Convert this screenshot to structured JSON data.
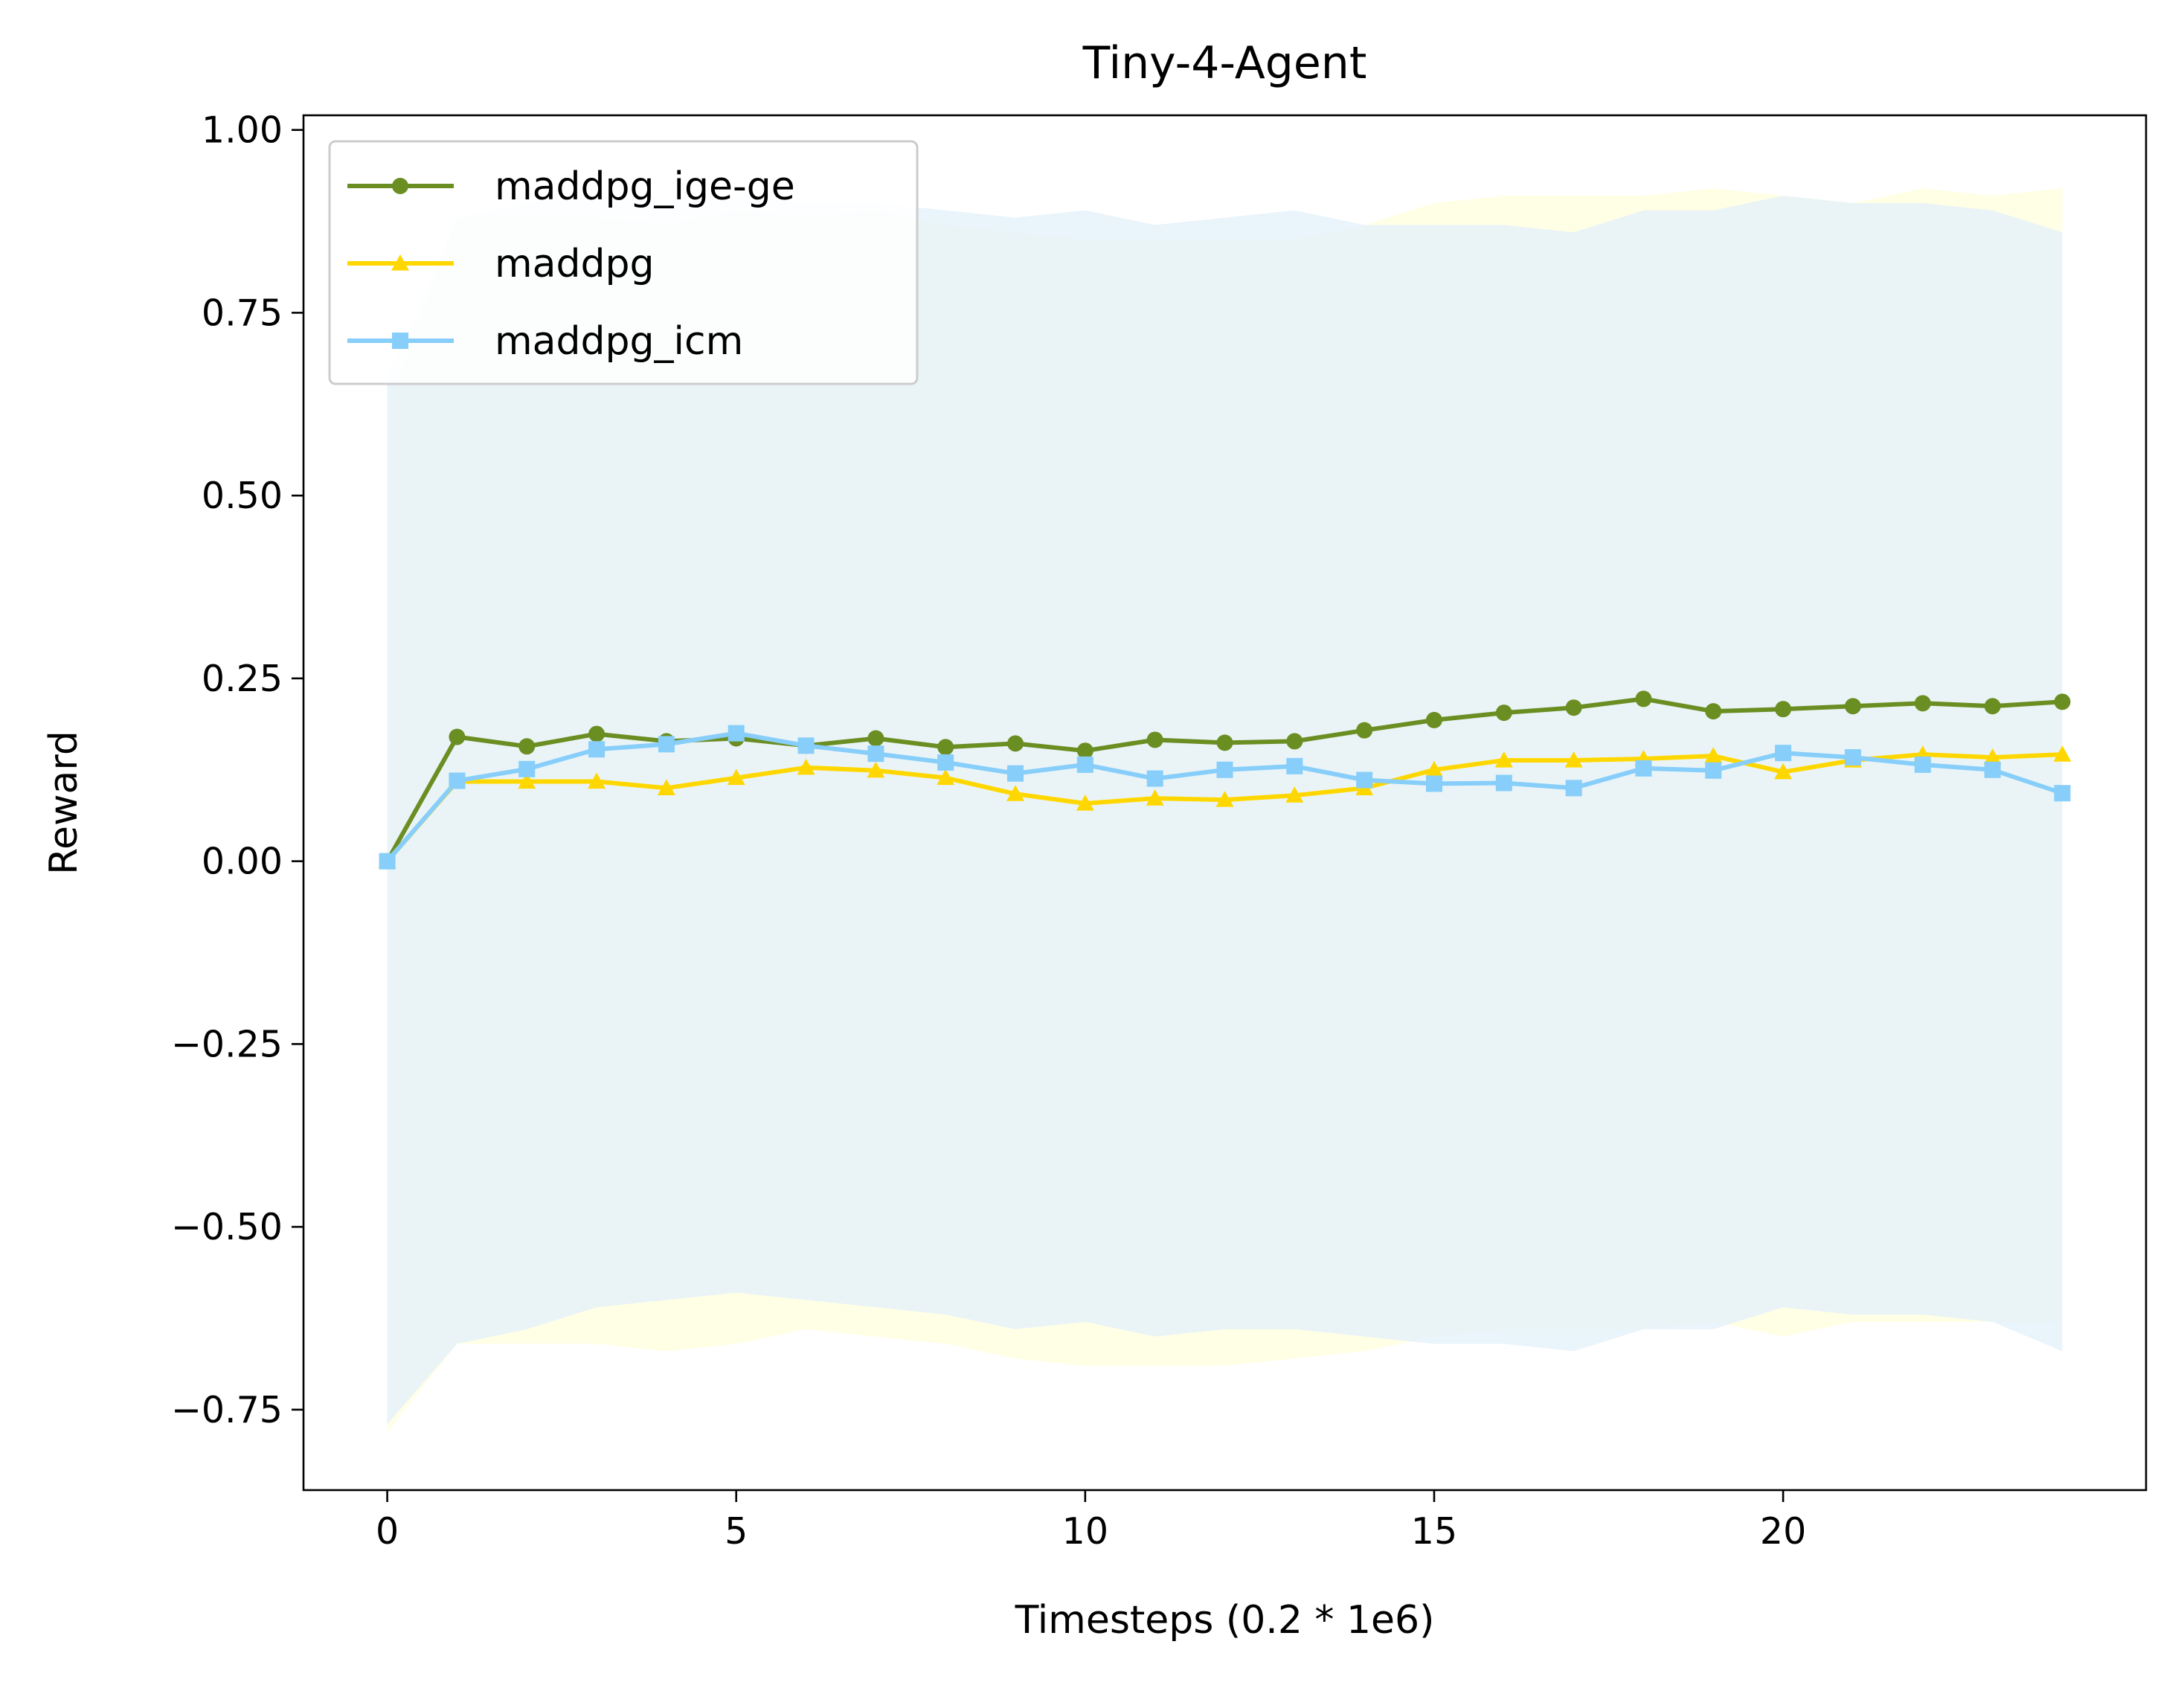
{
  "chart_data": {
    "type": "line",
    "title": "Tiny-4-Agent",
    "xlabel": "Timesteps (0.2 * 1e6)",
    "ylabel": "Reward",
    "xlim": [
      -1.2,
      25.2
    ],
    "ylim": [
      -0.86,
      1.02
    ],
    "xticks": [
      0,
      5,
      10,
      15,
      20
    ],
    "xtick_labels": [
      "0",
      "5",
      "10",
      "15",
      "20"
    ],
    "yticks": [
      1.0,
      0.75,
      0.5,
      0.25,
      0.0,
      -0.25,
      -0.5,
      -0.75
    ],
    "ytick_labels": [
      "1.00",
      "0.75",
      "0.50",
      "0.25",
      "0.00",
      "−0.25",
      "−0.50",
      "−0.75"
    ],
    "grid": false,
    "legend_position": "top-left",
    "x": [
      0,
      1,
      2,
      3,
      4,
      5,
      6,
      7,
      8,
      9,
      10,
      11,
      12,
      13,
      14,
      15,
      16,
      17,
      18,
      19,
      20,
      21,
      22,
      23,
      24
    ],
    "series": [
      {
        "name": "maddpg_ige-ge",
        "color": "#6b8e23",
        "marker": "circle",
        "values": [
          0.0,
          0.17,
          0.157,
          0.174,
          0.164,
          0.168,
          0.158,
          0.168,
          0.156,
          0.161,
          0.151,
          0.166,
          0.162,
          0.164,
          0.179,
          0.193,
          0.203,
          0.21,
          0.222,
          0.205,
          0.208,
          0.212,
          0.216,
          0.212,
          0.218
        ]
      },
      {
        "name": "maddpg",
        "color": "#ffd700",
        "marker": "triangle",
        "band_color": "#ffffe0",
        "values": [
          0.0,
          0.109,
          0.109,
          0.109,
          0.1,
          0.114,
          0.128,
          0.124,
          0.114,
          0.092,
          0.079,
          0.086,
          0.084,
          0.09,
          0.1,
          0.125,
          0.138,
          0.138,
          0.14,
          0.144,
          0.122,
          0.138,
          0.146,
          0.142,
          0.146
        ],
        "band_upper": [
          0.62,
          0.88,
          0.88,
          0.88,
          0.87,
          0.89,
          0.88,
          0.89,
          0.87,
          0.86,
          0.85,
          0.85,
          0.85,
          0.85,
          0.87,
          0.9,
          0.91,
          0.91,
          0.91,
          0.92,
          0.91,
          0.9,
          0.92,
          0.91,
          0.92
        ],
        "band_lower": [
          -0.78,
          -0.66,
          -0.66,
          -0.66,
          -0.67,
          -0.66,
          -0.64,
          -0.65,
          -0.66,
          -0.68,
          -0.69,
          -0.69,
          -0.69,
          -0.68,
          -0.67,
          -0.65,
          -0.64,
          -0.64,
          -0.64,
          -0.63,
          -0.65,
          -0.63,
          -0.63,
          -0.63,
          -0.63
        ]
      },
      {
        "name": "maddpg_icm",
        "color": "#87cefa",
        "marker": "square",
        "band_color": "#e6f2fa",
        "values": [
          0.0,
          0.11,
          0.126,
          0.153,
          0.16,
          0.175,
          0.158,
          0.147,
          0.135,
          0.12,
          0.132,
          0.113,
          0.125,
          0.13,
          0.111,
          0.106,
          0.107,
          0.1,
          0.127,
          0.124,
          0.148,
          0.142,
          0.132,
          0.125,
          0.093
        ],
        "band_upper": [
          0.66,
          0.88,
          0.9,
          0.91,
          0.9,
          0.91,
          0.9,
          0.9,
          0.89,
          0.88,
          0.89,
          0.87,
          0.88,
          0.89,
          0.87,
          0.87,
          0.87,
          0.86,
          0.89,
          0.89,
          0.91,
          0.9,
          0.9,
          0.89,
          0.86
        ],
        "band_lower": [
          -0.77,
          -0.66,
          -0.64,
          -0.61,
          -0.6,
          -0.59,
          -0.6,
          -0.61,
          -0.62,
          -0.64,
          -0.63,
          -0.65,
          -0.64,
          -0.64,
          -0.65,
          -0.66,
          -0.66,
          -0.67,
          -0.64,
          -0.64,
          -0.61,
          -0.62,
          -0.62,
          -0.63,
          -0.67
        ]
      }
    ]
  }
}
